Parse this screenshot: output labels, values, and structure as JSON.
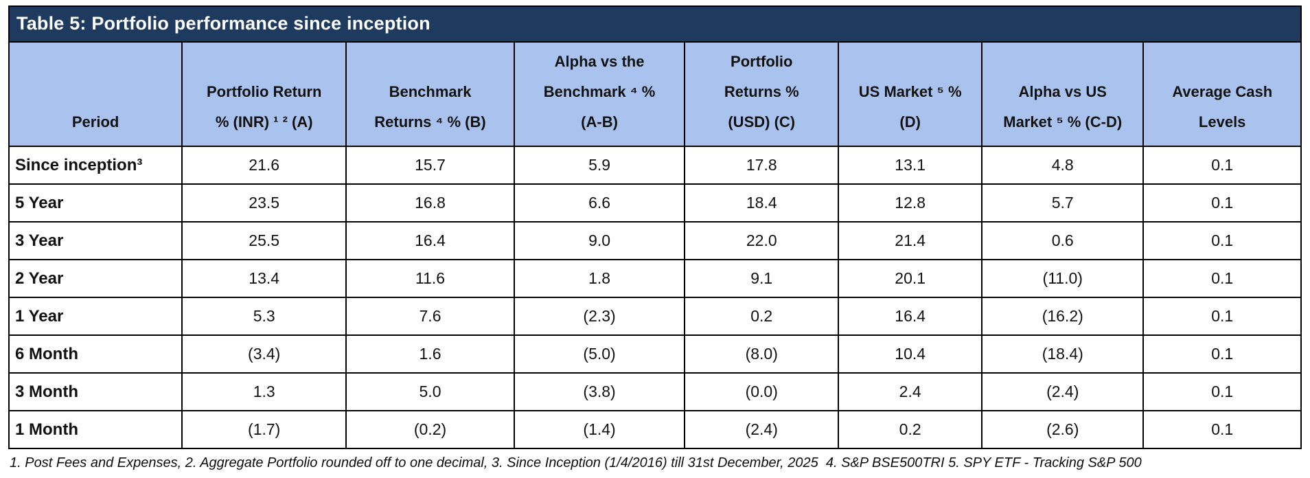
{
  "table": {
    "title": "Table 5: Portfolio performance since inception",
    "columns": [
      {
        "label": "Period"
      },
      {
        "label": "Portfolio Return\n% (INR) ¹ ² (A)"
      },
      {
        "label": "Benchmark\nReturns ⁴ % (B)"
      },
      {
        "label": "Alpha vs the\nBenchmark ⁴ %\n(A-B)"
      },
      {
        "label": "Portfolio\nReturns %\n(USD) (C)"
      },
      {
        "label": "US Market ⁵ %\n(D)"
      },
      {
        "label": "Alpha vs US\nMarket ⁵ % (C-D)"
      },
      {
        "label": "Average Cash\nLevels"
      }
    ],
    "rows": [
      {
        "period": "Since inception³",
        "values": [
          "21.6",
          "15.7",
          "5.9",
          "17.8",
          "13.1",
          "4.8",
          "0.1"
        ]
      },
      {
        "period": "5 Year",
        "values": [
          "23.5",
          "16.8",
          "6.6",
          "18.4",
          "12.8",
          "5.7",
          "0.1"
        ]
      },
      {
        "period": "3 Year",
        "values": [
          "25.5",
          "16.4",
          "9.0",
          "22.0",
          "21.4",
          "0.6",
          "0.1"
        ]
      },
      {
        "period": "2 Year",
        "values": [
          "13.4",
          "11.6",
          "1.8",
          "9.1",
          "20.1",
          "(11.0)",
          "0.1"
        ]
      },
      {
        "period": "1 Year",
        "values": [
          "5.3",
          "7.6",
          "(2.3)",
          "0.2",
          "16.4",
          "(16.2)",
          "0.1"
        ]
      },
      {
        "period": "6 Month",
        "values": [
          "(3.4)",
          "1.6",
          "(5.0)",
          "(8.0)",
          "10.4",
          "(18.4)",
          "0.1"
        ]
      },
      {
        "period": "3 Month",
        "values": [
          "1.3",
          "5.0",
          "(3.8)",
          "(0.0)",
          "2.4",
          "(2.4)",
          "0.1"
        ]
      },
      {
        "period": "1 Month",
        "values": [
          "(1.7)",
          "(0.2)",
          "(1.4)",
          "(2.4)",
          "0.2",
          "(2.6)",
          "0.1"
        ]
      }
    ]
  },
  "footnote": "1. Post Fees and Expenses, 2. Aggregate Portfolio rounded off to one decimal, 3. Since Inception (1/4/2016) till 31st December, 2025  4. S&P BSE500TRI 5. SPY ETF - Tracking S&P 500",
  "colors": {
    "title_bg": "#1e3a5f",
    "title_text": "#ffffff",
    "header_bg": "#a9c3ee",
    "border": "#000000"
  }
}
